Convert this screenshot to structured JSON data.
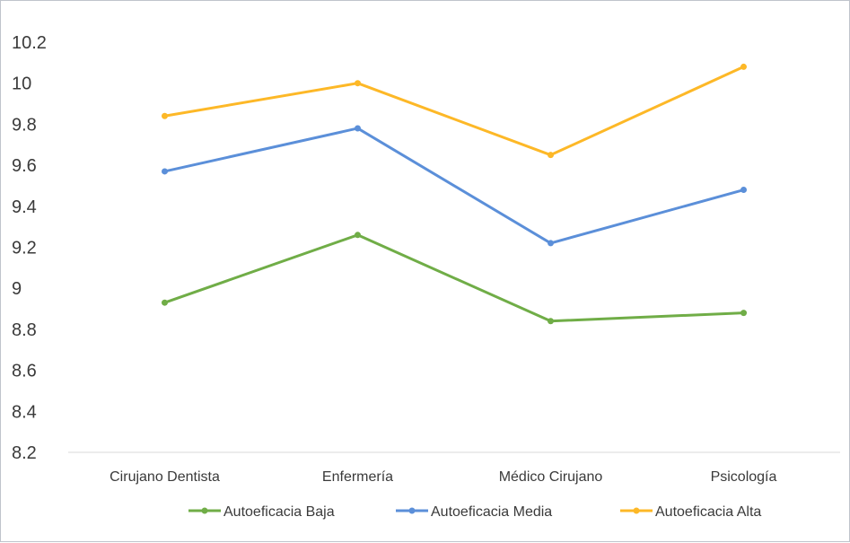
{
  "chart_data": {
    "type": "line",
    "categories": [
      "Cirujano Dentista",
      "Enfermería",
      "Médico Cirujano",
      "Psicología"
    ],
    "ylim": [
      8.2,
      10.2
    ],
    "yticks": [
      "8.2",
      "8.4",
      "8.6",
      "8.8",
      "9",
      "9.2",
      "9.4",
      "9.6",
      "9.8",
      "10",
      "10.2"
    ],
    "grid": false,
    "legend_position": "bottom",
    "series": [
      {
        "name": "Autoeficacia Baja",
        "color": "#70ad47",
        "values": [
          8.93,
          9.26,
          8.84,
          8.88
        ]
      },
      {
        "name": "Autoeficacia Media",
        "color": "#5b8fd9",
        "values": [
          9.57,
          9.78,
          9.22,
          9.48
        ]
      },
      {
        "name": "Autoeficacia Alta",
        "color": "#fdb827",
        "values": [
          9.84,
          10.0,
          9.65,
          10.08
        ]
      }
    ]
  }
}
